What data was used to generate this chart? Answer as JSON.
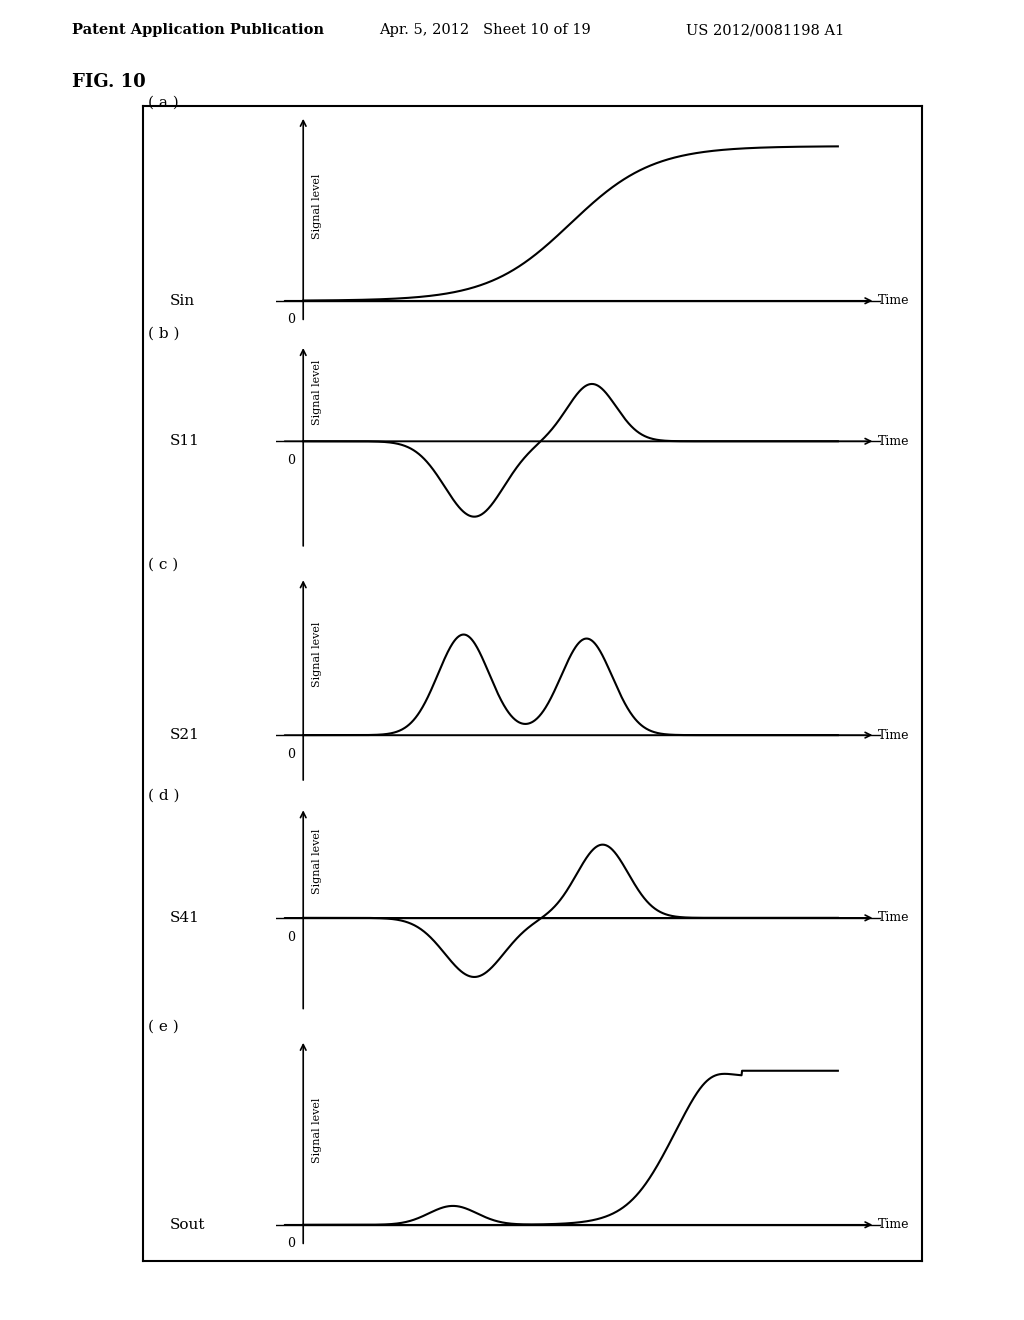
{
  "header_left": "Patent Application Publication",
  "header_mid": "Apr. 5, 2012   Sheet 10 of 19",
  "header_right": "US 2012/0081198 A1",
  "fig_label": "FIG. 10",
  "subplots": [
    {
      "label": "( a )",
      "signal_name": "Sin",
      "ylabel": "Signal level",
      "xlabel": "Time",
      "type": "sigmoid_rise"
    },
    {
      "label": "( b )",
      "signal_name": "S11",
      "ylabel": "Signal level",
      "xlabel": "Time",
      "type": "neg_then_pos_pulse"
    },
    {
      "label": "( c )",
      "signal_name": "S21",
      "ylabel": "Signal level",
      "xlabel": "Time",
      "type": "two_pos_pulses"
    },
    {
      "label": "( d )",
      "signal_name": "S41",
      "ylabel": "Signal level",
      "xlabel": "Time",
      "type": "neg_then_pos_pulse2"
    },
    {
      "label": "( e )",
      "signal_name": "Sout",
      "ylabel": "Signal level",
      "xlabel": "Time",
      "type": "sout_shape"
    }
  ],
  "background_color": "#ffffff",
  "line_color": "#000000",
  "box_color": "#000000",
  "text_color": "#000000"
}
